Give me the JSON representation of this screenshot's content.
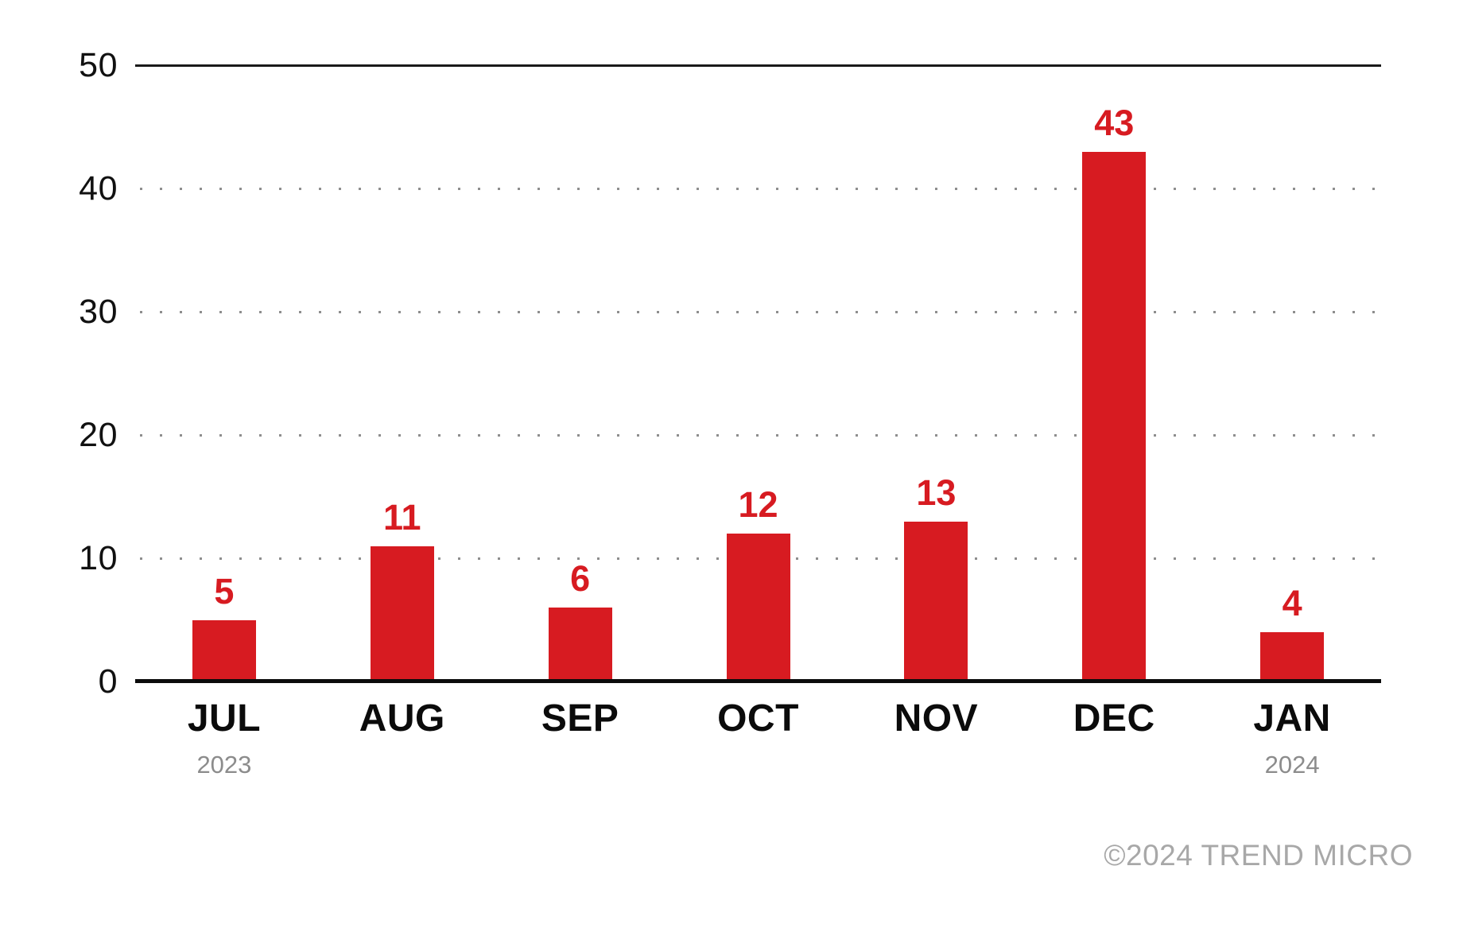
{
  "chart_data": {
    "type": "bar",
    "categories": [
      "JUL",
      "AUG",
      "SEP",
      "OCT",
      "NOV",
      "DEC",
      "JAN"
    ],
    "values": [
      5,
      11,
      6,
      12,
      13,
      43,
      4
    ],
    "bar_value_labels": [
      "5",
      "11",
      "6",
      "12",
      "13",
      "43",
      "4"
    ],
    "category_year_labels": [
      "2023",
      "",
      "",
      "",
      "",
      "",
      "2024"
    ],
    "title": "",
    "xlabel": "",
    "ylabel": "",
    "ylim": [
      0,
      50
    ],
    "yticks": [
      0,
      10,
      20,
      30,
      40,
      50
    ],
    "grid": "horizontal dotted gridlines at 10, 20, 30, 40; solid rule at 50; heavy solid baseline at 0",
    "legend": "none",
    "bar_color": "#d71b21",
    "value_label_color": "#d71b21"
  },
  "footer": {
    "copyright": "©2024 TREND MICRO"
  },
  "colors": {
    "background": "#ffffff",
    "bar": "#d71b21",
    "value_label": "#d71b21",
    "axis_baseline": "#0b0b0b",
    "top_rule": "#1a1a1a",
    "dotted_gridline": "#8e8e8e",
    "tick_label": "#111111",
    "month_label": "#0b0b0b",
    "year_label": "#8c8c8c",
    "copyright": "#a8a8a8"
  }
}
